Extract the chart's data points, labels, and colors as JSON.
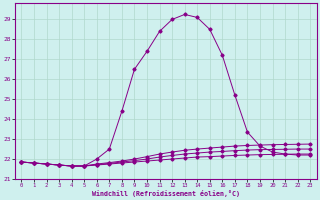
{
  "xlabel": "Windchill (Refroidissement éolien,°C)",
  "background_color": "#cff0ee",
  "grid_color": "#b0d8cc",
  "line_color": "#880088",
  "x_ticks": [
    0,
    1,
    2,
    3,
    4,
    5,
    6,
    7,
    8,
    9,
    10,
    11,
    12,
    13,
    14,
    15,
    16,
    17,
    18,
    19,
    20,
    21,
    22,
    23
  ],
  "y_ticks": [
    21,
    22,
    23,
    24,
    25,
    26,
    27,
    28,
    29
  ],
  "xlim": [
    -0.5,
    23.5
  ],
  "ylim": [
    21.0,
    29.8
  ],
  "series": [
    {
      "x": [
        0,
        1,
        2,
        3,
        4,
        5,
        6,
        7,
        8,
        9,
        10,
        11,
        12,
        13,
        14,
        15,
        16,
        17,
        18,
        19,
        20,
        21,
        22,
        23
      ],
      "y": [
        21.85,
        21.8,
        21.75,
        21.7,
        21.65,
        21.65,
        21.7,
        21.75,
        21.8,
        21.85,
        21.9,
        21.95,
        22.0,
        22.05,
        22.1,
        22.12,
        22.15,
        22.18,
        22.2,
        22.22,
        22.23,
        22.24,
        22.25,
        22.25
      ]
    },
    {
      "x": [
        0,
        1,
        2,
        3,
        4,
        5,
        6,
        7,
        8,
        9,
        10,
        11,
        12,
        13,
        14,
        15,
        16,
        17,
        18,
        19,
        20,
        21,
        22,
        23
      ],
      "y": [
        21.85,
        21.8,
        21.75,
        21.7,
        21.65,
        21.65,
        21.72,
        21.78,
        21.85,
        21.92,
        22.0,
        22.1,
        22.18,
        22.25,
        22.3,
        22.35,
        22.38,
        22.42,
        22.45,
        22.47,
        22.48,
        22.49,
        22.5,
        22.5
      ]
    },
    {
      "x": [
        0,
        1,
        2,
        3,
        4,
        5,
        6,
        7,
        8,
        9,
        10,
        11,
        12,
        13,
        14,
        15,
        16,
        17,
        18,
        19,
        20,
        21,
        22,
        23
      ],
      "y": [
        21.85,
        21.8,
        21.75,
        21.7,
        21.65,
        21.65,
        21.75,
        21.82,
        21.9,
        22.0,
        22.12,
        22.25,
        22.35,
        22.44,
        22.5,
        22.55,
        22.6,
        22.65,
        22.68,
        22.7,
        22.72,
        22.73,
        22.74,
        22.75
      ]
    },
    {
      "x": [
        0,
        1,
        2,
        3,
        4,
        5,
        6,
        7,
        8,
        9,
        10,
        11,
        12,
        13,
        14,
        15,
        16,
        17,
        18,
        19,
        20,
        21,
        22,
        23
      ],
      "y": [
        21.85,
        21.8,
        21.75,
        21.7,
        21.65,
        21.65,
        22.0,
        22.5,
        24.4,
        26.5,
        27.4,
        28.4,
        29.0,
        29.25,
        29.1,
        28.5,
        27.2,
        25.2,
        23.35,
        22.65,
        22.35,
        22.25,
        22.2,
        22.2
      ]
    }
  ]
}
